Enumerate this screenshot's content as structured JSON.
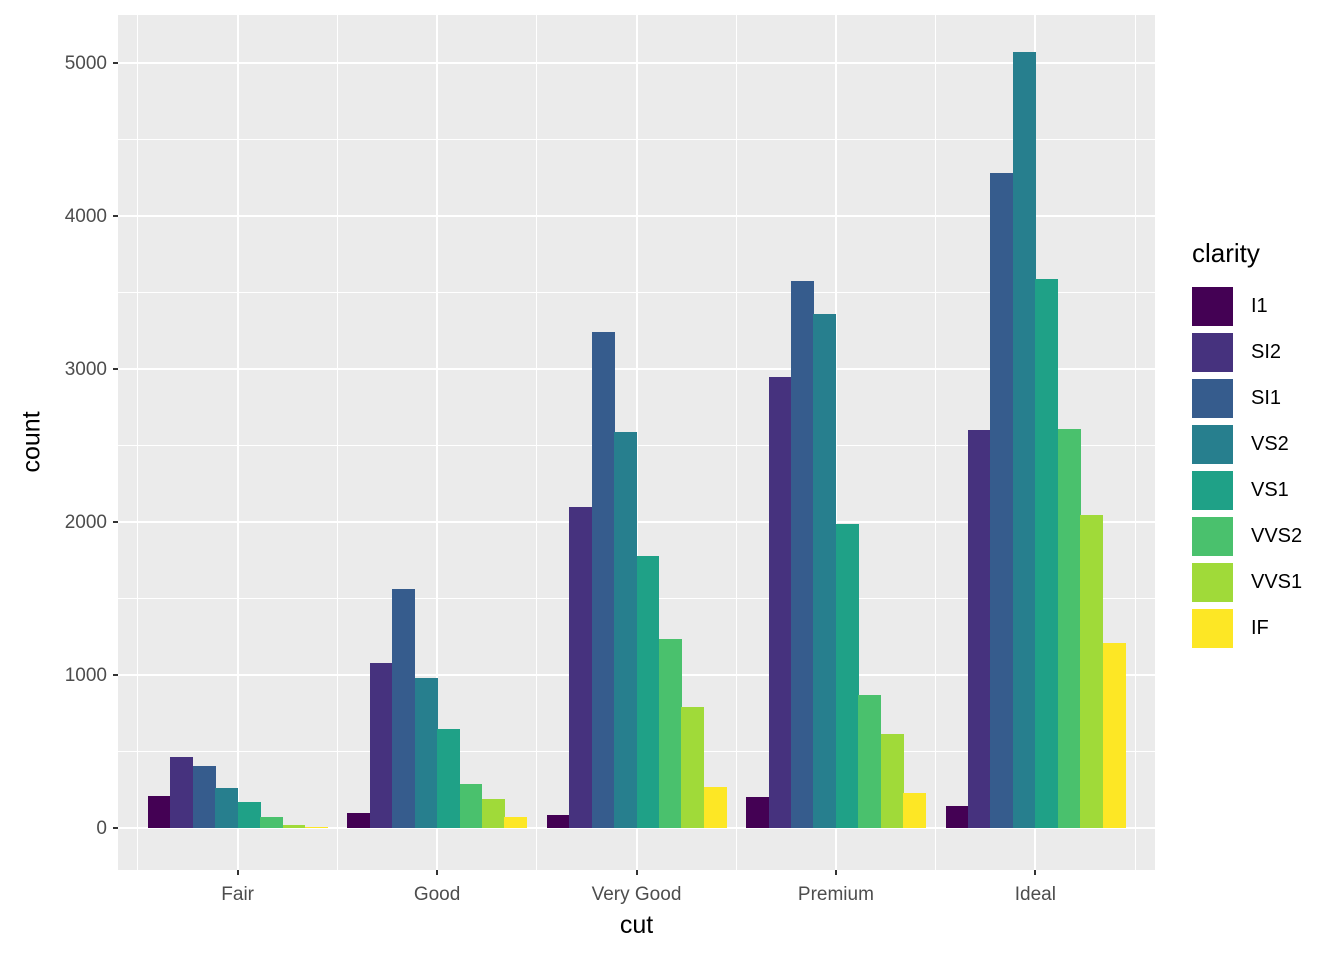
{
  "chart_data": {
    "type": "bar",
    "title": "",
    "xlabel": "cut",
    "ylabel": "count",
    "legend_title": "clarity",
    "legend_position": "right",
    "grid": "major+minor",
    "panel_background": "#ebebeb",
    "gridline_color": "#ffffff",
    "tick_label_color": "#4d4d4d",
    "categories": [
      "Fair",
      "Good",
      "Very Good",
      "Premium",
      "Ideal"
    ],
    "y_ticks": [
      0,
      1000,
      2000,
      3000,
      4000,
      5000
    ],
    "y_minor_ticks": [
      500,
      1500,
      2500,
      3500,
      4500
    ],
    "ylim": [
      -275,
      5314
    ],
    "series": [
      {
        "name": "I1",
        "color": "#440154",
        "values": [
          210,
          96,
          84,
          205,
          146
        ]
      },
      {
        "name": "SI2",
        "color": "#46327e",
        "values": [
          466,
          1081,
          2100,
          2949,
          2598
        ]
      },
      {
        "name": "SI1",
        "color": "#365c8d",
        "values": [
          408,
          1560,
          3240,
          3575,
          4282
        ]
      },
      {
        "name": "VS2",
        "color": "#277f8e",
        "values": [
          261,
          978,
          2591,
          3357,
          5071
        ]
      },
      {
        "name": "VS1",
        "color": "#1fa187",
        "values": [
          170,
          648,
          1775,
          1989,
          3589
        ]
      },
      {
        "name": "VVS2",
        "color": "#4ac16d",
        "values": [
          69,
          286,
          1235,
          870,
          2606
        ]
      },
      {
        "name": "VVS1",
        "color": "#a0da39",
        "values": [
          17,
          186,
          789,
          616,
          2047
        ]
      },
      {
        "name": "IF",
        "color": "#fde725",
        "values": [
          9,
          71,
          268,
          230,
          1212
        ]
      }
    ]
  }
}
